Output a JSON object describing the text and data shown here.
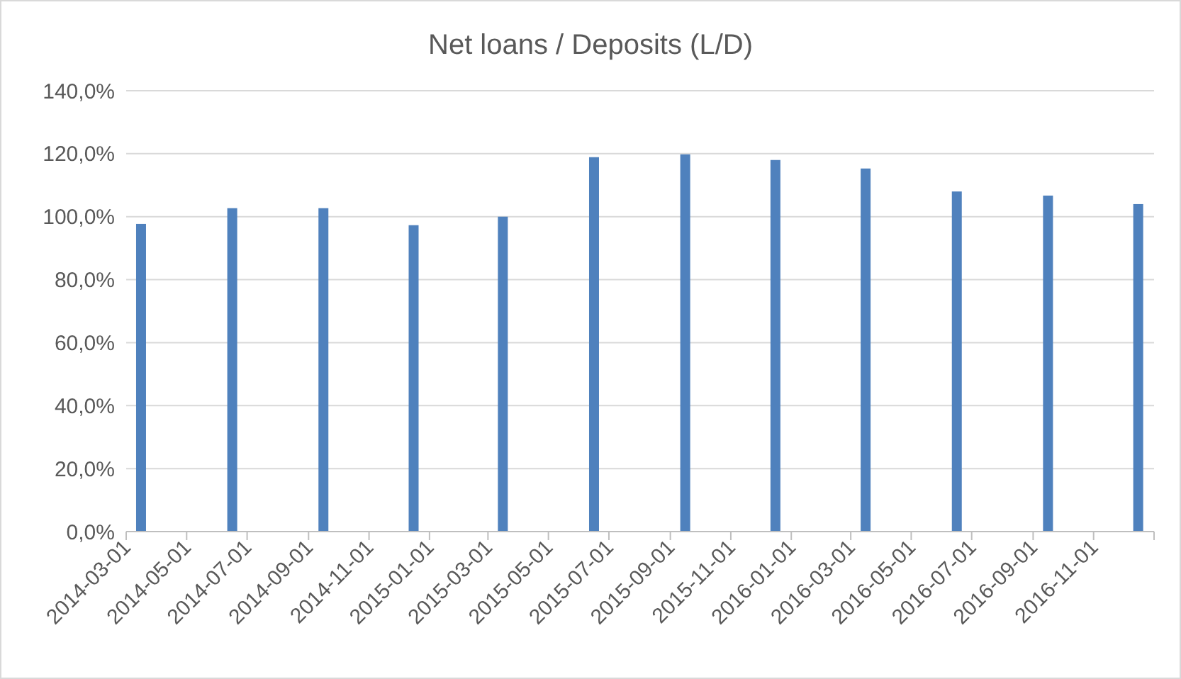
{
  "chart_data": {
    "type": "bar",
    "title": "Net loans / Deposits (L/D)",
    "x": [
      "2014-03-16",
      "2014-06-16",
      "2014-09-16",
      "2014-12-16",
      "2015-03-16",
      "2015-06-16",
      "2015-09-16",
      "2015-12-16",
      "2016-03-16",
      "2016-06-16",
      "2016-09-16",
      "2016-12-16"
    ],
    "values": [
      97.7,
      102.7,
      102.7,
      97.3,
      100.0,
      118.9,
      119.8,
      118.0,
      115.3,
      108.0,
      106.7,
      104.0
    ],
    "color": "#4f81bd",
    "xlim": [
      "2014-03-01",
      "2017-01-01"
    ],
    "xticks": [
      "2014-03-01",
      "2014-05-01",
      "2014-07-01",
      "2014-09-01",
      "2014-11-01",
      "2015-01-01",
      "2015-03-01",
      "2015-05-01",
      "2015-07-01",
      "2015-09-01",
      "2015-11-01",
      "2016-01-01",
      "2016-03-01",
      "2016-05-01",
      "2016-07-01",
      "2016-09-01",
      "2016-11-01",
      {
        "value": "2017-01-01",
        "label": null
      }
    ],
    "ylim": [
      0,
      140
    ],
    "yticks": [
      {
        "value": 0,
        "label": "0,0%"
      },
      {
        "value": 20,
        "label": "20,0%"
      },
      {
        "value": 40,
        "label": "40,0%"
      },
      {
        "value": 60,
        "label": "60,0%"
      },
      {
        "value": 80,
        "label": "80,0%"
      },
      {
        "value": 100,
        "label": "100,0%"
      },
      {
        "value": 120,
        "label": "120,0%"
      },
      {
        "value": 140,
        "label": "140,0%"
      }
    ],
    "grid": "y"
  }
}
